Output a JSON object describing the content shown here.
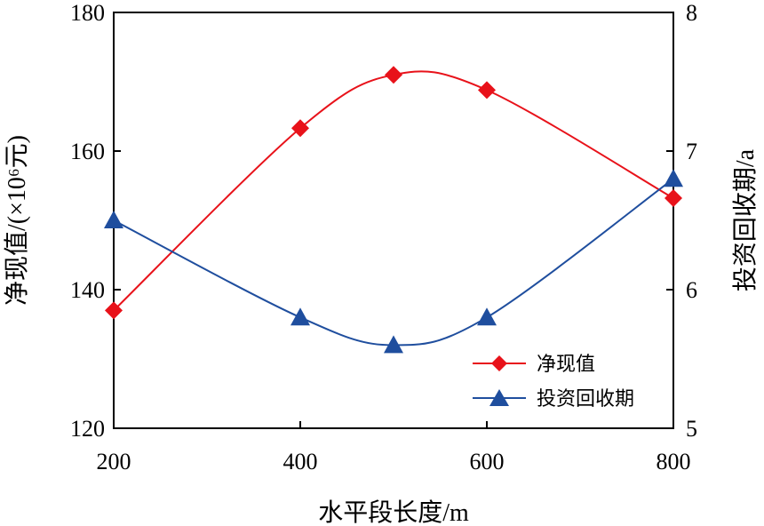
{
  "chart_data": {
    "type": "line",
    "x": [
      200,
      400,
      500,
      600,
      800
    ],
    "xlabel": "水平段长度/m",
    "xlim": [
      200,
      800
    ],
    "xticks": [
      200,
      400,
      600,
      800
    ],
    "ylabel_left": "净现值/(×10⁶元)",
    "ylim_left": [
      120,
      180
    ],
    "yticks_left": [
      120,
      140,
      160,
      180
    ],
    "ylabel_right": "投资回收期/a",
    "ylim_right": [
      5,
      8
    ],
    "yticks_right": [
      5,
      6,
      7,
      8
    ],
    "grid": false,
    "legend_position": "lower-right",
    "series": [
      {
        "name": "净现值",
        "axis": "left",
        "color": "#e8121a",
        "marker": "diamond",
        "values": [
          137,
          163.3,
          171,
          168.8,
          153.2
        ]
      },
      {
        "name": "投资回收期",
        "axis": "right",
        "color": "#1f4e9e",
        "marker": "triangle",
        "values": [
          6.5,
          5.8,
          5.6,
          5.8,
          6.8
        ]
      }
    ]
  }
}
